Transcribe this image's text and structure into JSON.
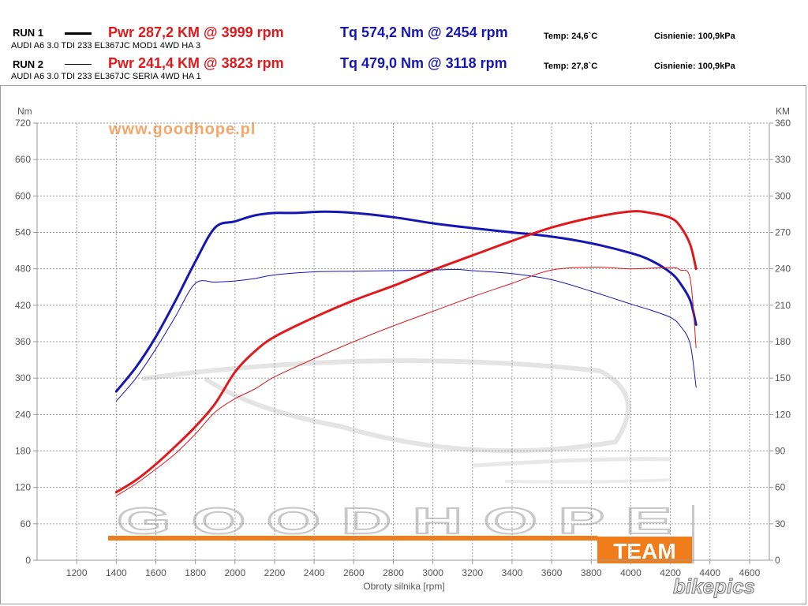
{
  "runs": [
    {
      "label": "RUN 1",
      "car": "AUDI A6 3.0 TDI 233 EL367JC MOD1 4WD HA 3",
      "pwr": "Pwr  287,2 KM @ 3999 rpm",
      "tq": "Tq 574,2 Nm @ 2454 rpm",
      "temp": "Temp: 24,6`C",
      "pressure": "Cisnienie: 100,9kPa"
    },
    {
      "label": "RUN 2",
      "car": "AUDI A6 3.0 TDI 233 EL367JC SERIA 4WD HA 1",
      "pwr": "Pwr  241,4 KM @ 3823 rpm",
      "tq": "Tq 479,0 Nm @ 3118 rpm",
      "temp": "Temp: 27,8`C",
      "pressure": "Cisnienie: 100,9kPa"
    }
  ],
  "watermarks": {
    "url": "www.goodhope.pl",
    "brand": "GOODHOPE",
    "team": "TEAM",
    "photo": "bikepics"
  },
  "colors": {
    "power": "#e0191c",
    "torque": "#1616b4",
    "grid": "#9a9a9a",
    "orange": "#f07c1a"
  },
  "chart_data": {
    "type": "line",
    "xlabel": "Obroty silnika [rpm]",
    "ylabel_left": "Nm",
    "ylabel_right": "KM",
    "xlim": [
      1000,
      4700
    ],
    "xticks": [
      1200,
      1400,
      1600,
      1800,
      2000,
      2200,
      2400,
      2600,
      2800,
      3000,
      3200,
      3400,
      3600,
      3800,
      4000,
      4200,
      4400,
      4600
    ],
    "ylim_left": [
      0,
      720
    ],
    "yticks_left": [
      0,
      60,
      120,
      180,
      240,
      300,
      360,
      420,
      480,
      540,
      600,
      660,
      720
    ],
    "ylim_right": [
      0,
      360
    ],
    "yticks_right": [
      0,
      30,
      60,
      90,
      120,
      150,
      180,
      210,
      240,
      270,
      300,
      330,
      360
    ],
    "grid": true,
    "series": [
      {
        "name": "Tq RUN 1",
        "axis": "left",
        "color": "#1616b4",
        "width": 3,
        "x": [
          1400,
          1500,
          1600,
          1700,
          1800,
          1900,
          2000,
          2100,
          2200,
          2300,
          2454,
          2600,
          2800,
          3000,
          3200,
          3400,
          3600,
          3800,
          4000,
          4100,
          4200,
          4250,
          4300,
          4330
        ],
        "y": [
          278,
          318,
          368,
          428,
          492,
          548,
          558,
          568,
          572,
          572,
          574,
          572,
          565,
          555,
          547,
          540,
          533,
          522,
          506,
          494,
          474,
          456,
          428,
          388
        ]
      },
      {
        "name": "Pwr RUN 1",
        "axis": "right",
        "color": "#e0191c",
        "width": 3,
        "x": [
          1400,
          1500,
          1600,
          1700,
          1800,
          1900,
          2000,
          2100,
          2200,
          2400,
          2600,
          2800,
          3000,
          3200,
          3400,
          3600,
          3800,
          3999,
          4100,
          4200,
          4250,
          4300,
          4330
        ],
        "y": [
          56,
          66,
          79,
          94,
          110,
          129,
          155,
          172,
          184,
          200,
          214,
          226,
          239,
          251,
          263,
          274,
          282,
          287.2,
          286,
          282,
          275,
          260,
          240
        ]
      },
      {
        "name": "Tq RUN 2",
        "axis": "left",
        "color": "#1616b4",
        "width": 1,
        "x": [
          1400,
          1500,
          1600,
          1700,
          1800,
          1900,
          2000,
          2100,
          2200,
          2400,
          2600,
          2800,
          3000,
          3118,
          3200,
          3400,
          3600,
          3800,
          4000,
          4100,
          4200,
          4250,
          4300,
          4330
        ],
        "y": [
          262,
          300,
          348,
          402,
          456,
          458,
          460,
          464,
          470,
          475,
          476,
          477,
          478,
          479,
          477,
          472,
          462,
          443,
          422,
          412,
          400,
          386,
          356,
          285
        ]
      },
      {
        "name": "Pwr RUN 2",
        "axis": "right",
        "color": "#e0191c",
        "width": 1,
        "x": [
          1400,
          1500,
          1600,
          1700,
          1800,
          1900,
          2000,
          2100,
          2200,
          2400,
          2600,
          2800,
          3000,
          3200,
          3400,
          3600,
          3823,
          4000,
          4200,
          4250,
          4300,
          4330
        ],
        "y": [
          53,
          63,
          75,
          88,
          104,
          122,
          133,
          141,
          151,
          166,
          180,
          193,
          205,
          217,
          228,
          239,
          241.4,
          240,
          241,
          239,
          232,
          175
        ]
      }
    ]
  }
}
